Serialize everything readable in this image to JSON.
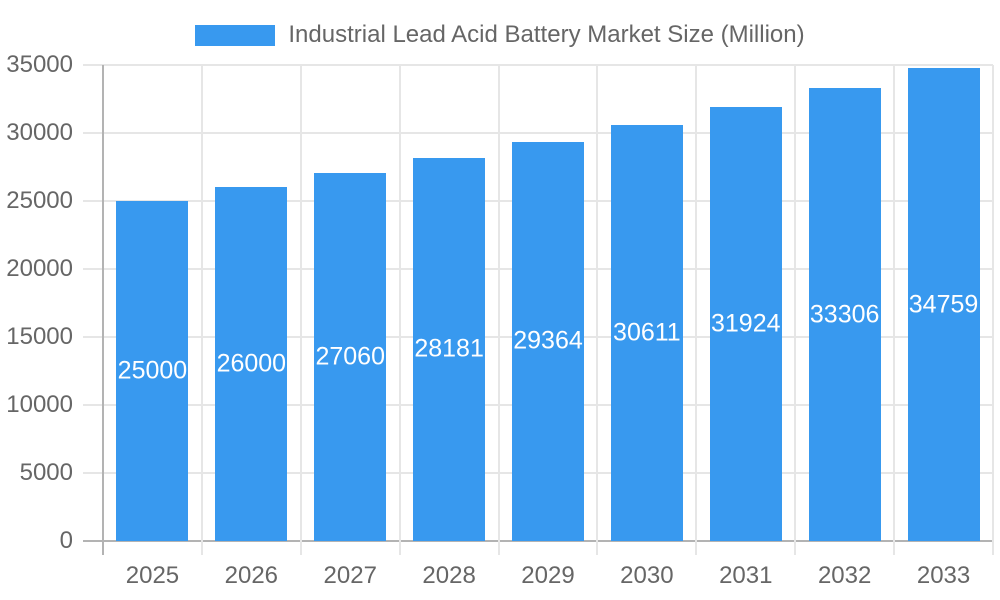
{
  "chart_data": {
    "type": "bar",
    "title": "Industrial Lead Acid Battery Market Size (Million)",
    "series": [
      {
        "name": "Industrial Lead Acid Battery Market Size (Million)",
        "values": [
          25000,
          26000,
          27060,
          28181,
          29364,
          30611,
          31924,
          33306,
          34759
        ]
      }
    ],
    "categories": [
      "2025",
      "2026",
      "2027",
      "2028",
      "2029",
      "2030",
      "2031",
      "2032",
      "2033"
    ],
    "xlabel": "",
    "ylabel": "",
    "ylim": [
      0,
      35000
    ],
    "y_ticks": [
      0,
      5000,
      10000,
      15000,
      20000,
      25000,
      30000,
      35000
    ],
    "grid": "on",
    "legend_position": "top",
    "bar_color": "#3899EF",
    "bar_label_color": "#FFFFFF",
    "grid_color": "#E6E6E6",
    "axis_line_color": "#B3B3B3",
    "tick_label_color": "#666666",
    "legend_text_color": "#666666"
  }
}
